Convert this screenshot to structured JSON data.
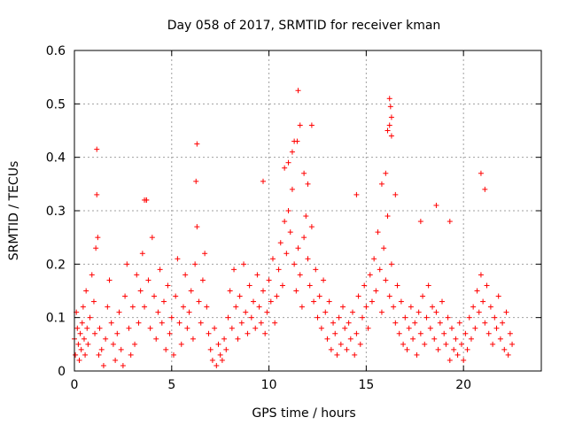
{
  "chart_data": {
    "type": "scatter",
    "title": "Day 058 of 2017, SRMTID for receiver kman",
    "xlabel": "GPS time / hours",
    "ylabel": "SRMTID / TECUs",
    "xlim": [
      0,
      24
    ],
    "ylim": [
      0,
      0.6
    ],
    "xticks": [
      0,
      5,
      10,
      15,
      20
    ],
    "xtick_labels": [
      "0",
      "5",
      "10",
      "15",
      "20"
    ],
    "yticks": [
      0,
      0.1,
      0.2,
      0.3,
      0.4,
      0.5,
      0.6
    ],
    "ytick_labels": [
      "0",
      "0.1",
      "0.2",
      "0.3",
      "0.4",
      "0.5",
      "0.6"
    ],
    "grid": true,
    "marker": "plus",
    "series": [
      {
        "name": "SRMTID",
        "color": "#ff0000",
        "x": [
          0.0,
          0.05,
          0.1,
          0.15,
          0.2,
          0.25,
          0.3,
          0.35,
          0.4,
          0.45,
          0.5,
          0.55,
          0.6,
          0.65,
          0.7,
          0.8,
          0.9,
          1.0,
          1.05,
          1.1,
          1.15,
          1.2,
          1.25,
          1.3,
          1.4,
          1.5,
          1.6,
          1.7,
          1.8,
          1.9,
          2.0,
          2.1,
          2.2,
          2.3,
          2.4,
          2.5,
          2.6,
          2.7,
          2.8,
          2.9,
          3.0,
          3.1,
          3.2,
          3.3,
          3.4,
          3.5,
          3.6,
          3.7,
          3.8,
          3.9,
          4.0,
          4.1,
          4.2,
          4.3,
          4.4,
          4.5,
          4.6,
          4.7,
          4.8,
          4.9,
          5.0,
          5.1,
          5.2,
          5.3,
          5.4,
          5.5,
          5.6,
          5.7,
          5.8,
          5.9,
          6.0,
          6.1,
          6.2,
          6.3,
          6.4,
          6.5,
          6.6,
          6.7,
          6.8,
          6.9,
          7.0,
          7.1,
          7.2,
          7.3,
          7.4,
          7.5,
          7.6,
          7.7,
          7.8,
          7.9,
          8.0,
          8.1,
          8.2,
          8.3,
          8.4,
          8.5,
          8.6,
          8.7,
          8.8,
          8.9,
          9.0,
          9.1,
          9.2,
          9.3,
          9.4,
          9.5,
          9.6,
          9.7,
          9.8,
          9.9,
          10.0,
          10.1,
          10.2,
          10.3,
          10.4,
          10.5,
          10.6,
          10.7,
          10.8,
          10.9,
          11.0,
          11.1,
          11.2,
          11.3,
          11.4,
          11.5,
          11.6,
          11.7,
          11.8,
          11.9,
          12.0,
          12.1,
          12.2,
          12.3,
          12.4,
          12.5,
          12.6,
          12.7,
          12.8,
          12.9,
          13.0,
          13.1,
          13.2,
          13.3,
          13.4,
          13.5,
          13.6,
          13.7,
          13.8,
          13.9,
          14.0,
          14.1,
          14.2,
          14.3,
          14.4,
          14.5,
          14.6,
          14.7,
          14.8,
          14.9,
          15.0,
          15.1,
          15.2,
          15.3,
          15.4,
          15.5,
          15.6,
          15.7,
          15.8,
          15.9,
          16.0,
          16.1,
          16.2,
          16.3,
          16.4,
          16.5,
          16.6,
          16.7,
          16.8,
          16.9,
          17.0,
          17.1,
          17.2,
          17.3,
          17.4,
          17.5,
          17.6,
          17.7,
          17.8,
          17.9,
          18.0,
          18.1,
          18.2,
          18.3,
          18.4,
          18.5,
          18.6,
          18.7,
          18.8,
          18.9,
          19.0,
          19.1,
          19.2,
          19.3,
          19.4,
          19.5,
          19.6,
          19.7,
          19.8,
          19.9,
          20.0,
          20.1,
          20.2,
          20.3,
          20.4,
          20.5,
          20.6,
          20.7,
          20.8,
          20.9,
          21.0,
          21.1,
          21.2,
          21.3,
          21.4,
          21.5,
          21.6,
          21.7,
          21.8,
          21.9,
          22.0,
          22.1,
          22.2,
          22.3,
          22.4,
          22.5,
          1.15,
          6.3,
          6.25,
          9.7,
          11.5,
          11.45,
          11.6,
          12.2,
          16.2,
          16.25,
          16.3,
          16.2,
          16.1,
          16.3,
          3.6,
          3.7,
          10.8,
          11.0,
          11.2,
          11.3,
          11.8,
          12.0,
          14.5,
          15.8,
          16.0,
          16.5,
          17.8,
          18.6,
          19.3,
          20.9,
          21.1
        ],
        "y": [
          0.06,
          0.03,
          0.11,
          0.08,
          0.05,
          0.02,
          0.07,
          0.04,
          0.09,
          0.12,
          0.06,
          0.03,
          0.15,
          0.08,
          0.05,
          0.1,
          0.18,
          0.13,
          0.07,
          0.23,
          0.33,
          0.25,
          0.03,
          0.08,
          0.04,
          0.01,
          0.06,
          0.12,
          0.17,
          0.09,
          0.05,
          0.02,
          0.07,
          0.11,
          0.04,
          0.01,
          0.14,
          0.2,
          0.08,
          0.03,
          0.12,
          0.05,
          0.18,
          0.09,
          0.15,
          0.22,
          0.12,
          0.32,
          0.17,
          0.08,
          0.25,
          0.14,
          0.06,
          0.11,
          0.19,
          0.09,
          0.13,
          0.04,
          0.16,
          0.07,
          0.1,
          0.03,
          0.14,
          0.21,
          0.09,
          0.05,
          0.12,
          0.18,
          0.08,
          0.11,
          0.15,
          0.06,
          0.2,
          0.27,
          0.13,
          0.09,
          0.17,
          0.22,
          0.12,
          0.07,
          0.04,
          0.02,
          0.08,
          0.01,
          0.05,
          0.03,
          0.02,
          0.06,
          0.04,
          0.1,
          0.15,
          0.08,
          0.19,
          0.12,
          0.06,
          0.14,
          0.09,
          0.2,
          0.11,
          0.07,
          0.16,
          0.1,
          0.13,
          0.08,
          0.18,
          0.12,
          0.09,
          0.15,
          0.07,
          0.11,
          0.17,
          0.13,
          0.21,
          0.09,
          0.14,
          0.19,
          0.24,
          0.16,
          0.28,
          0.22,
          0.3,
          0.26,
          0.34,
          0.2,
          0.15,
          0.23,
          0.18,
          0.12,
          0.25,
          0.29,
          0.21,
          0.16,
          0.27,
          0.13,
          0.19,
          0.1,
          0.14,
          0.08,
          0.17,
          0.11,
          0.06,
          0.13,
          0.04,
          0.09,
          0.07,
          0.03,
          0.1,
          0.05,
          0.12,
          0.08,
          0.04,
          0.09,
          0.06,
          0.11,
          0.03,
          0.07,
          0.14,
          0.05,
          0.1,
          0.16,
          0.12,
          0.08,
          0.18,
          0.13,
          0.21,
          0.15,
          0.26,
          0.19,
          0.11,
          0.23,
          0.17,
          0.29,
          0.14,
          0.2,
          0.12,
          0.09,
          0.16,
          0.07,
          0.13,
          0.05,
          0.1,
          0.04,
          0.08,
          0.12,
          0.06,
          0.09,
          0.03,
          0.11,
          0.07,
          0.14,
          0.05,
          0.1,
          0.16,
          0.08,
          0.12,
          0.06,
          0.11,
          0.04,
          0.09,
          0.13,
          0.07,
          0.05,
          0.1,
          0.02,
          0.08,
          0.04,
          0.06,
          0.03,
          0.09,
          0.05,
          0.02,
          0.07,
          0.04,
          0.1,
          0.06,
          0.12,
          0.08,
          0.15,
          0.11,
          0.18,
          0.13,
          0.09,
          0.16,
          0.07,
          0.12,
          0.05,
          0.1,
          0.08,
          0.14,
          0.06,
          0.09,
          0.04,
          0.11,
          0.03,
          0.07,
          0.05,
          0.415,
          0.425,
          0.355,
          0.355,
          0.525,
          0.43,
          0.46,
          0.46,
          0.51,
          0.495,
          0.475,
          0.46,
          0.45,
          0.44,
          0.32,
          0.32,
          0.38,
          0.39,
          0.41,
          0.43,
          0.37,
          0.35,
          0.33,
          0.35,
          0.37,
          0.33,
          0.28,
          0.31,
          0.28,
          0.37,
          0.34
        ]
      }
    ]
  }
}
